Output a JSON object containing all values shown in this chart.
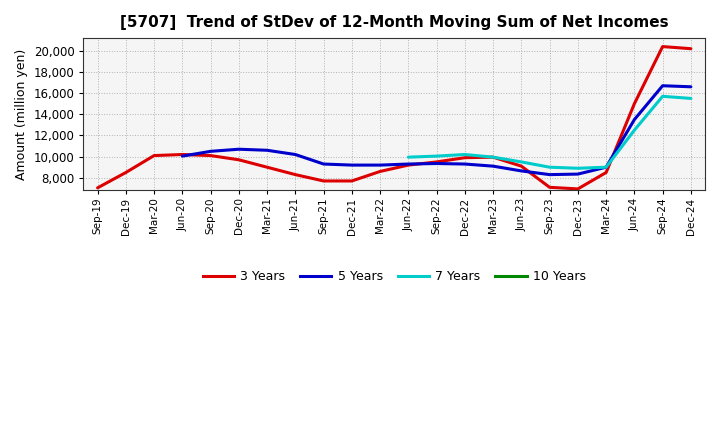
{
  "title": "[5707]  Trend of StDev of 12-Month Moving Sum of Net Incomes",
  "ylabel": "Amount (million yen)",
  "background_color": "#ffffff",
  "plot_bg_color": "#f5f5f5",
  "grid_color": "#aaaaaa",
  "x_labels": [
    "Sep-19",
    "Dec-19",
    "Mar-20",
    "Jun-20",
    "Sep-20",
    "Dec-20",
    "Mar-21",
    "Jun-21",
    "Sep-21",
    "Dec-21",
    "Mar-22",
    "Jun-22",
    "Sep-22",
    "Dec-22",
    "Mar-23",
    "Jun-23",
    "Sep-23",
    "Dec-23",
    "Mar-24",
    "Jun-24",
    "Sep-24",
    "Dec-24"
  ],
  "ylim": [
    6800,
    21200
  ],
  "yticks": [
    8000,
    10000,
    12000,
    14000,
    16000,
    18000,
    20000
  ],
  "series": {
    "3 Years": {
      "color": "#dd0000",
      "values": [
        7050,
        8500,
        10100,
        10200,
        10100,
        9700,
        9000,
        8300,
        7700,
        7700,
        8600,
        9200,
        9500,
        9900,
        9950,
        9100,
        7100,
        6950,
        8500,
        15000,
        20400,
        20200
      ]
    },
    "5 Years": {
      "color": "#0000cc",
      "values": [
        null,
        null,
        null,
        10050,
        10500,
        10700,
        10600,
        10200,
        9300,
        9200,
        9200,
        9300,
        9350,
        9300,
        9100,
        8650,
        8300,
        8350,
        9000,
        13500,
        16700,
        16600
      ]
    },
    "7 Years": {
      "color": "#00cccc",
      "values": [
        null,
        null,
        null,
        null,
        null,
        null,
        null,
        null,
        null,
        null,
        null,
        9950,
        10050,
        10200,
        9950,
        9500,
        9000,
        8900,
        9000,
        12500,
        15700,
        15500
      ]
    },
    "10 Years": {
      "color": "#008800",
      "values": [
        null,
        null,
        null,
        null,
        null,
        null,
        null,
        null,
        null,
        null,
        null,
        null,
        null,
        null,
        null,
        null,
        null,
        null,
        null,
        null,
        null,
        null
      ]
    }
  },
  "legend_entries": [
    "3 Years",
    "5 Years",
    "7 Years",
    "10 Years"
  ],
  "legend_colors": [
    "#dd0000",
    "#0000cc",
    "#00cccc",
    "#008800"
  ]
}
